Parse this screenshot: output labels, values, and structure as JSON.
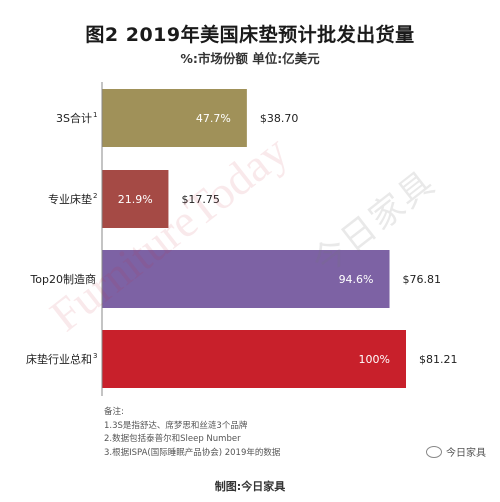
{
  "title": "图2  2019年美国床垫预计批发出货量",
  "subtitle": "%:市场份额  单位:亿美元",
  "chart_data": {
    "type": "bar",
    "orientation": "horizontal",
    "categories": [
      "3S合计",
      "专业床垫",
      "Top20制造商",
      "床垫行业总和"
    ],
    "category_superscripts": [
      "1",
      "2",
      "",
      "3"
    ],
    "values": [
      38.7,
      17.75,
      76.81,
      81.21
    ],
    "value_labels": [
      "$38.70",
      "$17.75",
      "$76.81",
      "$81.21"
    ],
    "share_labels": [
      "47.7%",
      "21.9%",
      "94.6%",
      "100%"
    ],
    "colors": [
      "#a09159",
      "#a54a45",
      "#7d62a4",
      "#c8202b"
    ],
    "xlim": [
      0,
      81.21
    ],
    "grid": false
  },
  "notes": {
    "heading": "备注:",
    "items": [
      "1.3S是指舒达、席梦思和丝涟3个品牌",
      "2.数据包括泰普尔和Sleep Number",
      "3.根据ISPA(国际睡眠产品协会) 2019年的数据"
    ]
  },
  "credit": "制图:今日家具",
  "brand": "今日家具",
  "watermark": {
    "english": "FurnitureToday",
    "chinese": "今日家具"
  }
}
